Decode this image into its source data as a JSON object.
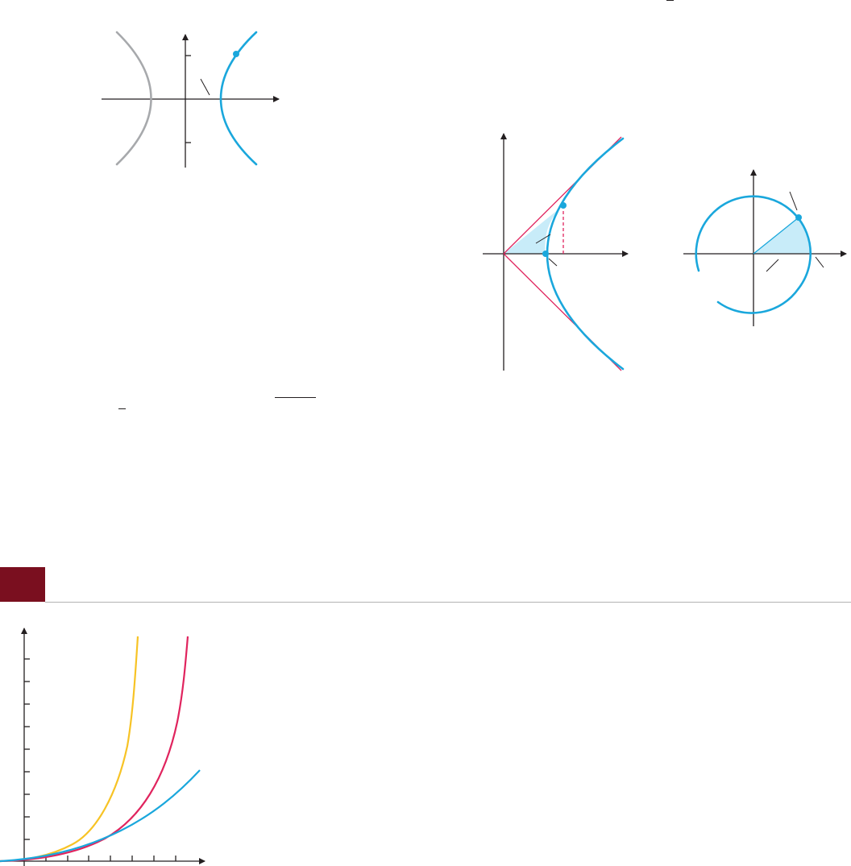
{
  "page": {
    "section_tab_color": "#7a0f1f",
    "rule_color": "#b3b3b3"
  },
  "colors": {
    "hyperbola_blue": "#1aa7dc",
    "hyperbola_gray": "#a7a9ac",
    "asymptote_red": "#e0245e",
    "shade_light_blue": "#c8ecf9",
    "curve_yellow": "#f7c325",
    "curve_crimson": "#e0245e",
    "curve_cyan": "#1aa7dc",
    "axis_black": "#231f20"
  },
  "figures": [
    {
      "id": "hyperbola-parametrization",
      "parts": [
        "x-axis",
        "y-axis",
        "right-branch",
        "left-branch",
        "point-on-branch",
        "vertex-leader"
      ]
    },
    {
      "id": "hyperbolic-sector",
      "parts": [
        "x-axis",
        "y-axis",
        "asymptotes",
        "right-branch",
        "shaded-sector",
        "dashed-ordinate",
        "two-points",
        "two-leaders"
      ]
    },
    {
      "id": "circular-sector",
      "parts": [
        "x-axis",
        "y-axis",
        "unit-circle",
        "shaded-sector",
        "point-on-circle",
        "three-leaders"
      ]
    },
    {
      "id": "growth-curves",
      "parts": [
        "x-axis",
        "y-axis",
        "yellow-curve",
        "crimson-curve",
        "cyan-curve"
      ]
    }
  ]
}
